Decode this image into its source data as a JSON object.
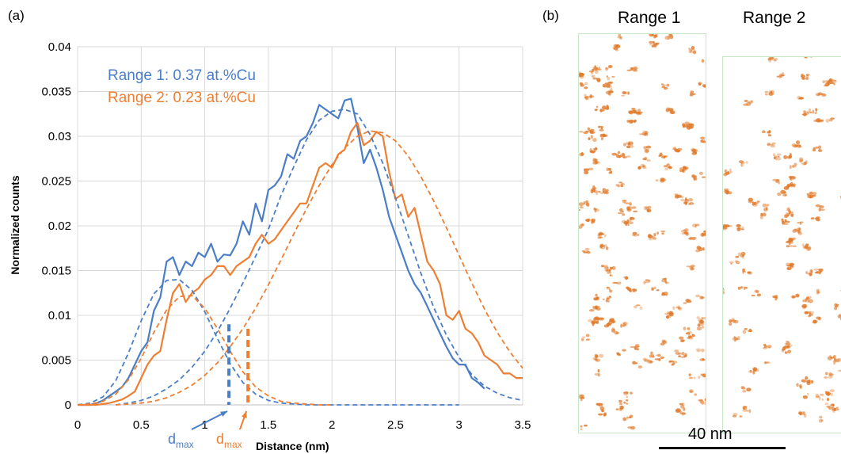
{
  "panel_a_label": "(a)",
  "panel_b_label": "(b)",
  "chart_data": {
    "type": "line",
    "xlabel": "Distance (nm)",
    "ylabel": "Normalized counts",
    "xlim": [
      0,
      3.5
    ],
    "ylim": [
      0,
      0.04
    ],
    "xticks": [
      "0",
      "0.5",
      "1",
      "1.5",
      "2",
      "2.5",
      "3",
      "3.5"
    ],
    "yticks": [
      "0",
      "0.005",
      "0.01",
      "0.015",
      "0.02",
      "0.025",
      "0.03",
      "0.035",
      "0.04"
    ],
    "grid": "vertical and horizontal",
    "legend_position": "top-left",
    "series": [
      {
        "name": "Range 1: 0.37 at.%Cu",
        "color": "#4a7ec6",
        "style": "solid",
        "x": [
          0.0,
          0.05,
          0.1,
          0.15,
          0.2,
          0.25,
          0.3,
          0.35,
          0.4,
          0.45,
          0.5,
          0.55,
          0.6,
          0.65,
          0.7,
          0.75,
          0.8,
          0.85,
          0.9,
          0.95,
          1.0,
          1.05,
          1.1,
          1.15,
          1.2,
          1.25,
          1.3,
          1.35,
          1.4,
          1.45,
          1.5,
          1.55,
          1.6,
          1.65,
          1.7,
          1.75,
          1.8,
          1.85,
          1.9,
          1.95,
          2.0,
          2.05,
          2.1,
          2.15,
          2.2,
          2.25,
          2.3,
          2.35,
          2.4,
          2.45,
          2.5,
          2.55,
          2.6,
          2.65,
          2.7,
          2.75,
          2.8,
          2.85,
          2.9,
          2.95,
          3.0,
          3.05,
          3.1,
          3.15,
          3.2
        ],
        "y": [
          0,
          0,
          0,
          0.0002,
          0.0005,
          0.001,
          0.0015,
          0.002,
          0.003,
          0.0045,
          0.006,
          0.007,
          0.0105,
          0.012,
          0.016,
          0.0165,
          0.0145,
          0.016,
          0.0155,
          0.017,
          0.0165,
          0.018,
          0.016,
          0.0168,
          0.0167,
          0.018,
          0.0205,
          0.019,
          0.0225,
          0.0205,
          0.024,
          0.0245,
          0.0255,
          0.028,
          0.0275,
          0.0295,
          0.03,
          0.0315,
          0.0335,
          0.033,
          0.0325,
          0.032,
          0.034,
          0.0342,
          0.031,
          0.027,
          0.0285,
          0.0265,
          0.024,
          0.021,
          0.019,
          0.017,
          0.015,
          0.0135,
          0.0125,
          0.011,
          0.0095,
          0.008,
          0.0065,
          0.0052,
          0.0045,
          0.0045,
          0.003,
          0.0025,
          0.0018
        ]
      },
      {
        "name": "Range 2: 0.23 at.%Cu",
        "color": "#ee7f32",
        "style": "solid",
        "x": [
          0.0,
          0.05,
          0.1,
          0.15,
          0.2,
          0.25,
          0.3,
          0.35,
          0.4,
          0.45,
          0.5,
          0.55,
          0.6,
          0.65,
          0.7,
          0.75,
          0.8,
          0.85,
          0.9,
          0.95,
          1.0,
          1.05,
          1.1,
          1.15,
          1.2,
          1.25,
          1.3,
          1.35,
          1.4,
          1.45,
          1.5,
          1.55,
          1.6,
          1.65,
          1.7,
          1.75,
          1.8,
          1.85,
          1.9,
          1.95,
          2.0,
          2.05,
          2.1,
          2.15,
          2.2,
          2.25,
          2.3,
          2.35,
          2.4,
          2.45,
          2.5,
          2.55,
          2.6,
          2.65,
          2.7,
          2.75,
          2.8,
          2.85,
          2.9,
          2.95,
          3.0,
          3.05,
          3.1,
          3.15,
          3.2,
          3.25,
          3.3,
          3.35,
          3.4,
          3.45,
          3.5
        ],
        "y": [
          0,
          0,
          0,
          0,
          0.0001,
          0.0002,
          0.0004,
          0.0006,
          0.001,
          0.0015,
          0.003,
          0.0045,
          0.0055,
          0.006,
          0.0095,
          0.0125,
          0.0135,
          0.0115,
          0.0125,
          0.013,
          0.014,
          0.0145,
          0.0155,
          0.0155,
          0.0145,
          0.0155,
          0.016,
          0.0165,
          0.018,
          0.019,
          0.018,
          0.0185,
          0.0195,
          0.0205,
          0.0215,
          0.0225,
          0.0225,
          0.0245,
          0.0265,
          0.027,
          0.0265,
          0.028,
          0.0285,
          0.0305,
          0.0315,
          0.029,
          0.0295,
          0.0305,
          0.03,
          0.026,
          0.023,
          0.0235,
          0.021,
          0.022,
          0.019,
          0.016,
          0.015,
          0.0135,
          0.01,
          0.0095,
          0.0105,
          0.0085,
          0.008,
          0.007,
          0.0055,
          0.005,
          0.0045,
          0.0035,
          0.0035,
          0.003,
          0.003
        ]
      },
      {
        "color": "#4a7ec6",
        "style": "dashed",
        "x": [
          0.0,
          0.1,
          0.2,
          0.3,
          0.4,
          0.5,
          0.6,
          0.7,
          0.8,
          0.9,
          1.0,
          1.1,
          1.2,
          1.3,
          1.4,
          1.5,
          1.6,
          1.7,
          1.8,
          1.9,
          2.0,
          2.1,
          2.2,
          2.3,
          2.4,
          2.5,
          2.6,
          2.7,
          2.8,
          2.9,
          3.0
        ],
        "y": [
          0,
          0.0002,
          0.0009,
          0.0027,
          0.0058,
          0.0094,
          0.0124,
          0.0139,
          0.014,
          0.0128,
          0.0104,
          0.0074,
          0.0046,
          0.0025,
          0.0012,
          0.0005,
          0.0002,
          0.0001,
          0,
          0,
          0,
          0,
          0,
          0,
          0,
          0,
          0,
          0,
          0,
          0,
          0
        ]
      },
      {
        "color": "#4a7ec6",
        "style": "dashed",
        "x": [
          0.3,
          0.4,
          0.5,
          0.6,
          0.7,
          0.8,
          0.9,
          1.0,
          1.1,
          1.2,
          1.3,
          1.4,
          1.5,
          1.6,
          1.7,
          1.8,
          1.9,
          2.0,
          2.1,
          2.2,
          2.3,
          2.4,
          2.5,
          2.6,
          2.7,
          2.8,
          2.9,
          3.0,
          3.1,
          3.2,
          3.3,
          3.4,
          3.5
        ],
        "y": [
          0,
          0.0002,
          0.0005,
          0.001,
          0.0018,
          0.0028,
          0.0042,
          0.006,
          0.0082,
          0.0108,
          0.0136,
          0.0166,
          0.0196,
          0.0234,
          0.0266,
          0.0296,
          0.0318,
          0.0328,
          0.033,
          0.0325,
          0.0302,
          0.027,
          0.0231,
          0.0189,
          0.0147,
          0.0109,
          0.0078,
          0.0053,
          0.0034,
          0.0021,
          0.0013,
          0.0008,
          0.0005
        ]
      },
      {
        "color": "#ee7f32",
        "style": "dashed",
        "x": [
          0.0,
          0.1,
          0.2,
          0.3,
          0.4,
          0.5,
          0.6,
          0.7,
          0.8,
          0.9,
          1.0,
          1.1,
          1.2,
          1.3,
          1.4,
          1.5,
          1.6,
          1.7,
          1.8,
          1.9,
          2.0
        ],
        "y": [
          0,
          0.0001,
          0.0004,
          0.0012,
          0.0028,
          0.0052,
          0.0081,
          0.0106,
          0.0121,
          0.0122,
          0.0108,
          0.0085,
          0.006,
          0.0037,
          0.002,
          0.001,
          0.0004,
          0.0002,
          0.0001,
          0,
          0
        ]
      },
      {
        "color": "#ee7f32",
        "style": "dashed",
        "x": [
          0.3,
          0.4,
          0.5,
          0.6,
          0.7,
          0.8,
          0.9,
          1.0,
          1.1,
          1.2,
          1.3,
          1.4,
          1.5,
          1.6,
          1.7,
          1.8,
          1.9,
          2.0,
          2.1,
          2.2,
          2.3,
          2.4,
          2.5,
          2.6,
          2.7,
          2.8,
          2.9,
          3.0,
          3.1,
          3.2,
          3.3,
          3.4,
          3.5
        ],
        "y": [
          0,
          0.0001,
          0.0002,
          0.0004,
          0.0008,
          0.0014,
          0.0022,
          0.0033,
          0.0047,
          0.0065,
          0.0085,
          0.0108,
          0.0134,
          0.0162,
          0.0191,
          0.0219,
          0.0245,
          0.0268,
          0.0287,
          0.03,
          0.0306,
          0.0304,
          0.0295,
          0.0278,
          0.0255,
          0.0228,
          0.0198,
          0.0167,
          0.0136,
          0.0107,
          0.0081,
          0.0059,
          0.0041
        ]
      }
    ],
    "markers": [
      {
        "label_main": "d",
        "label_sub": "max",
        "x": 1.19,
        "y": 0.009,
        "color": "#4a7ec6"
      },
      {
        "label_main": "d",
        "label_sub": "max",
        "x": 1.34,
        "y": 0.0085,
        "color": "#ee7f32"
      }
    ]
  },
  "panel_b": {
    "range1_title": "Range 1",
    "range2_title": "Range 2",
    "scale_label": "40 nm",
    "point_color": "#e07a2a"
  }
}
